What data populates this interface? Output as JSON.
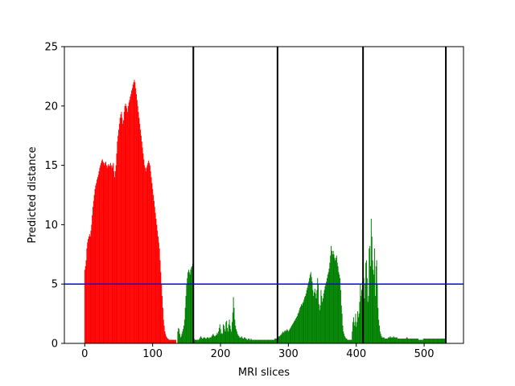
{
  "chart_data": {
    "type": "bar",
    "title": "",
    "xlabel": "MRI slices",
    "ylabel": "Predicted distance",
    "xlim": [
      -30,
      558
    ],
    "ylim": [
      0,
      25
    ],
    "xticks": [
      0,
      100,
      200,
      300,
      400,
      500
    ],
    "yticks": [
      0,
      5,
      10,
      15,
      20,
      25
    ],
    "grid": false,
    "threshold": {
      "y": 5,
      "color": "#0000ff"
    },
    "separators": {
      "x": [
        160,
        284,
        410,
        532
      ],
      "color": "#000000"
    },
    "series": [
      {
        "color": "#ff0000",
        "x_start": 0,
        "values": [
          6.2,
          6.5,
          7.0,
          8.0,
          8.5,
          8.8,
          9.0,
          9.2,
          9.0,
          9.5,
          10.0,
          10.8,
          11.5,
          12.0,
          12.5,
          13.0,
          13.3,
          13.5,
          13.8,
          14.0,
          14.2,
          14.5,
          14.8,
          15.0,
          15.2,
          15.4,
          15.5,
          15.3,
          15.2,
          15.0,
          15.2,
          15.3,
          15.0,
          14.8,
          15.0,
          15.1,
          14.9,
          15.0,
          15.2,
          15.0,
          14.8,
          15.0,
          15.2,
          14.5,
          14.0,
          14.5,
          15.0,
          16.0,
          17.0,
          17.5,
          18.0,
          18.5,
          19.0,
          19.3,
          19.5,
          19.0,
          18.5,
          18.8,
          19.5,
          20.0,
          20.2,
          20.0,
          19.8,
          19.5,
          20.0,
          20.3,
          20.5,
          20.8,
          21.0,
          21.3,
          21.5,
          21.8,
          22.0,
          22.2,
          22.0,
          21.5,
          21.0,
          20.5,
          20.0,
          19.5,
          19.0,
          18.5,
          18.0,
          17.5,
          17.0,
          16.5,
          16.0,
          15.5,
          15.0,
          14.8,
          14.5,
          14.8,
          15.0,
          15.2,
          15.4,
          15.2,
          15.0,
          14.5,
          14.0,
          13.5,
          13.0,
          12.5,
          12.0,
          11.5,
          11.0,
          10.5,
          10.0,
          9.5,
          9.0,
          8.5,
          8.0,
          7.0,
          6.0,
          5.0,
          4.0,
          3.0,
          2.0,
          1.5,
          1.0,
          0.8,
          0.6,
          0.5,
          0.4,
          0.4,
          0.3,
          0.3,
          0.3,
          0.3,
          0.3,
          0.3,
          0.3,
          0.3,
          0.3,
          0.3,
          0.3
        ]
      },
      {
        "color": "#008000",
        "x_start": 137,
        "values": [
          1.0,
          1.3,
          1.2,
          0.8,
          0.5,
          0.6,
          0.8,
          1.0,
          1.2,
          1.5,
          2.0,
          3.0,
          4.0,
          5.0,
          5.5,
          6.0,
          6.2,
          6.0,
          5.8,
          6.2,
          6.4,
          6.5,
          6.7,
          0.6,
          0.4,
          0.3,
          0.3,
          0.3,
          0.3,
          0.3,
          0.3,
          0.3,
          0.4,
          0.5,
          0.6,
          0.5,
          0.4,
          0.4,
          0.5,
          0.5,
          0.5,
          0.4,
          0.4,
          0.5,
          0.5,
          0.5,
          0.4,
          0.5,
          0.5,
          0.5,
          0.6,
          0.7,
          0.8,
          0.7,
          0.6,
          0.6,
          0.7,
          0.7,
          0.9,
          0.8,
          1.0,
          1.3,
          1.6,
          1.2,
          0.8,
          0.9,
          0.8,
          1.6,
          1.5,
          1.2,
          1.0,
          1.8,
          1.9,
          1.3,
          1.0,
          1.6,
          2.0,
          1.5,
          1.2,
          1.0,
          1.8,
          2.6,
          3.9,
          3.0,
          2.0,
          1.5,
          1.2,
          1.0,
          0.8,
          0.7,
          0.6,
          0.5,
          0.5,
          0.5,
          0.6,
          0.5,
          0.4,
          0.4,
          0.5,
          0.5,
          0.4,
          0.4,
          0.3,
          0.3,
          0.4,
          0.4,
          0.3,
          0.3,
          0.4,
          0.3,
          0.3,
          0.3,
          0.3,
          0.3,
          0.3,
          0.3,
          0.3,
          0.3,
          0.3,
          0.3,
          0.3,
          0.3,
          0.3,
          0.3,
          0.3,
          0.3,
          0.3,
          0.3,
          0.3,
          0.3,
          0.3,
          0.3,
          0.3,
          0.3,
          0.3,
          0.3,
          0.3,
          0.3,
          0.3,
          0.3,
          0.3,
          0.3,
          0.3,
          0.4,
          0.4,
          0.4,
          0.4,
          0.5,
          0.5,
          0.6,
          0.6,
          0.7,
          0.7,
          0.8,
          0.9,
          1.0,
          0.9,
          1.0,
          1.1,
          1.0,
          1.1,
          1.2,
          1.1,
          1.0,
          1.1,
          1.2,
          1.3,
          1.4,
          1.5,
          1.6,
          1.7,
          1.8,
          1.9,
          2.0,
          2.1,
          2.2,
          2.3,
          2.5,
          2.6,
          2.8,
          3.0,
          3.1,
          3.3,
          3.2,
          3.4,
          3.5,
          3.7,
          3.9,
          4.0,
          4.2,
          4.5,
          4.7,
          5.0,
          5.2,
          5.5,
          5.8,
          6.0,
          5.6,
          5.2,
          4.5,
          4.0,
          4.3,
          4.6,
          4.2,
          3.8,
          4.5,
          5.5,
          5.0,
          3.3,
          2.8,
          3.2,
          4.5,
          4.0,
          3.5,
          3.8,
          4.2,
          4.5,
          4.8,
          5.0,
          5.2,
          5.5,
          5.8,
          6.0,
          6.3,
          6.8,
          7.4,
          8.2,
          7.8,
          7.5,
          7.8,
          7.5,
          7.2,
          7.0,
          7.2,
          7.4,
          6.8,
          6.5,
          6.0,
          5.8,
          5.5,
          4.5,
          3.2,
          2.5,
          1.5,
          1.0,
          0.8,
          0.6,
          0.5,
          0.4,
          0.4,
          0.3,
          0.3,
          0.3,
          0.3,
          0.3,
          0.3,
          0.3,
          1.0,
          1.8,
          2.2,
          1.5,
          1.8,
          2.5,
          1.4,
          1.8,
          2.7,
          2.2,
          2.5,
          3.5,
          5.0,
          4.0,
          4.5,
          5.2,
          6.5,
          5.5,
          3.8,
          5.0,
          6.8,
          7.0,
          5.5,
          3.5,
          4.0,
          8.0,
          8.2,
          6.5,
          10.5,
          9.0,
          7.0,
          6.2,
          5.8,
          8.0,
          4.0,
          6.5,
          7.0,
          5.0,
          3.0,
          2.0,
          1.5,
          1.0,
          0.8,
          0.6,
          0.5,
          0.5,
          0.5,
          0.5,
          0.4,
          0.4,
          0.4,
          0.4,
          0.4,
          0.5,
          0.5,
          0.5,
          0.6,
          0.5,
          0.5,
          0.5,
          0.5,
          0.6,
          0.5,
          0.5,
          0.5,
          0.5,
          0.5,
          0.4,
          0.4,
          0.4,
          0.4,
          0.4,
          0.4,
          0.4,
          0.4,
          0.4,
          0.4,
          0.4,
          0.4,
          0.4,
          0.5,
          0.5,
          0.4,
          0.4,
          0.4,
          0.4,
          0.4,
          0.4,
          0.4,
          0.4,
          0.4,
          0.4,
          0.4,
          0.4,
          0.4,
          0.4,
          0.4,
          0.4,
          0.3,
          0.3,
          0.3,
          0.3,
          0.3,
          0.3,
          0.3,
          0.4,
          0.4,
          0.4,
          0.4,
          0.4,
          0.4,
          0.4,
          0.4,
          0.4,
          0.4,
          0.4,
          0.4,
          0.4,
          0.4,
          0.4,
          0.4,
          0.4,
          0.4,
          0.4,
          0.4,
          0.4,
          0.4,
          0.4,
          0.4,
          0.4,
          0.4,
          0.4,
          0.4,
          0.4,
          0.4,
          0.4,
          0.4,
          0.4
        ]
      }
    ]
  }
}
